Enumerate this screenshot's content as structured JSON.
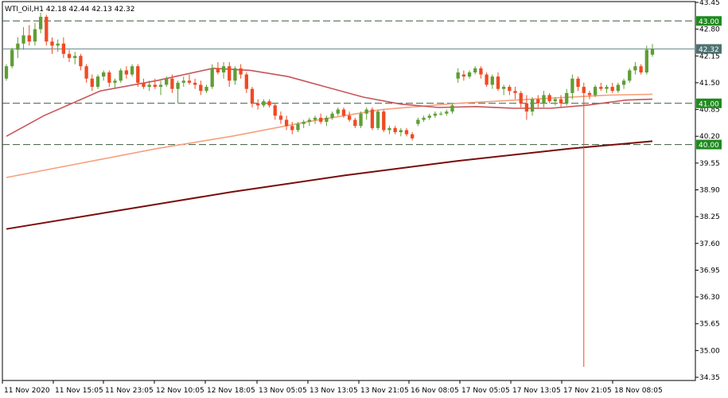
{
  "info_label": "WTI_Oil,H1  42.18 42.44 42.13 42.32",
  "colors": {
    "bull": "#5f9e35",
    "bear": "#f04a23",
    "ma_fast": "#c8555a",
    "ma_mid": "#f6a07c",
    "ma_slow": "#7a0c0c",
    "level_line": "#3c5a3c",
    "price_line": "#6e8c8c",
    "level_badge": "#1f8a1f",
    "price_badge": "#4e7070",
    "grid": "#000000"
  },
  "chart_data": {
    "type": "candlestick",
    "symbol": "WTI_Oil",
    "timeframe": "H1",
    "ohlc_last": {
      "open": 42.18,
      "high": 42.44,
      "low": 42.13,
      "close": 42.32
    },
    "ylim": [
      34.35,
      43.45
    ],
    "y_ticks": [
      "43.45",
      "42.80",
      "42.15",
      "41.50",
      "40.85",
      "40.20",
      "39.55",
      "38.90",
      "38.25",
      "37.60",
      "36.95",
      "36.30",
      "35.65",
      "35.00",
      "34.35"
    ],
    "x_ticks": [
      "11 Nov 2020",
      "11 Nov 15:05",
      "11 Nov 23:05",
      "12 Nov 10:05",
      "12 Nov 18:05",
      "13 Nov 05:05",
      "13 Nov 13:05",
      "13 Nov 21:05",
      "16 Nov 08:05",
      "17 Nov 05:05",
      "17 Nov 13:05",
      "17 Nov 21:05",
      "18 Nov 08:05"
    ],
    "horizontal_levels": [
      {
        "value": 43.0,
        "label": "43.00"
      },
      {
        "value": 41.0,
        "label": "41.00"
      },
      {
        "value": 40.0,
        "label": "40.00"
      }
    ],
    "current_price": {
      "value": 42.32,
      "label": "42.32"
    },
    "candles": [
      [
        41.6,
        41.95,
        41.55,
        41.9
      ],
      [
        41.9,
        42.35,
        41.85,
        42.3
      ],
      [
        42.3,
        42.6,
        42.1,
        42.45
      ],
      [
        42.45,
        42.85,
        42.3,
        42.65
      ],
      [
        42.65,
        42.9,
        42.4,
        42.5
      ],
      [
        42.5,
        42.95,
        42.4,
        42.8
      ],
      [
        42.8,
        43.2,
        42.7,
        43.1
      ],
      [
        43.1,
        43.15,
        42.4,
        42.5
      ],
      [
        42.5,
        42.6,
        42.2,
        42.4
      ],
      [
        42.4,
        42.55,
        42.25,
        42.45
      ],
      [
        42.45,
        42.6,
        42.1,
        42.2
      ],
      [
        42.2,
        42.3,
        42.0,
        42.1
      ],
      [
        42.1,
        42.25,
        41.95,
        42.15
      ],
      [
        42.15,
        42.2,
        41.8,
        41.9
      ],
      [
        41.9,
        41.95,
        41.5,
        41.6
      ],
      [
        41.6,
        41.7,
        41.3,
        41.4
      ],
      [
        41.4,
        41.7,
        41.35,
        41.65
      ],
      [
        41.65,
        41.8,
        41.55,
        41.75
      ],
      [
        41.75,
        41.8,
        41.4,
        41.5
      ],
      [
        41.5,
        41.6,
        41.35,
        41.55
      ],
      [
        41.55,
        41.85,
        41.5,
        41.8
      ],
      [
        41.8,
        41.9,
        41.6,
        41.7
      ],
      [
        41.7,
        41.95,
        41.65,
        41.9
      ],
      [
        41.9,
        41.95,
        41.4,
        41.5
      ],
      [
        41.5,
        41.6,
        41.35,
        41.4
      ],
      [
        41.4,
        41.55,
        41.3,
        41.45
      ],
      [
        41.45,
        41.6,
        41.35,
        41.4
      ],
      [
        41.4,
        41.55,
        41.2,
        41.45
      ],
      [
        41.45,
        41.65,
        41.4,
        41.6
      ],
      [
        41.6,
        41.7,
        41.25,
        41.35
      ],
      [
        41.35,
        41.55,
        41.0,
        41.5
      ],
      [
        41.5,
        41.65,
        41.4,
        41.55
      ],
      [
        41.55,
        41.7,
        41.45,
        41.5
      ],
      [
        41.5,
        41.6,
        41.35,
        41.45
      ],
      [
        41.45,
        41.55,
        41.2,
        41.3
      ],
      [
        41.3,
        41.45,
        41.25,
        41.4
      ],
      [
        41.4,
        41.95,
        41.35,
        41.85
      ],
      [
        41.85,
        42.0,
        41.7,
        41.75
      ],
      [
        41.75,
        42.0,
        41.6,
        41.9
      ],
      [
        41.9,
        42.0,
        41.4,
        41.55
      ],
      [
        41.55,
        41.9,
        41.45,
        41.85
      ],
      [
        41.85,
        41.95,
        41.6,
        41.7
      ],
      [
        41.7,
        41.75,
        41.25,
        41.35
      ],
      [
        41.35,
        41.4,
        40.9,
        41.0
      ],
      [
        41.0,
        41.1,
        40.85,
        40.95
      ],
      [
        40.95,
        41.1,
        40.9,
        41.05
      ],
      [
        41.05,
        41.1,
        40.9,
        40.95
      ],
      [
        40.95,
        41.0,
        40.6,
        40.7
      ],
      [
        40.7,
        40.8,
        40.5,
        40.6
      ],
      [
        40.6,
        40.7,
        40.35,
        40.45
      ],
      [
        40.45,
        40.55,
        40.25,
        40.35
      ],
      [
        40.35,
        40.55,
        40.3,
        40.5
      ],
      [
        40.5,
        40.6,
        40.4,
        40.55
      ],
      [
        40.55,
        40.65,
        40.45,
        40.6
      ],
      [
        40.6,
        40.7,
        40.5,
        40.65
      ],
      [
        40.65,
        40.75,
        40.5,
        40.55
      ],
      [
        40.55,
        40.7,
        40.45,
        40.65
      ],
      [
        40.65,
        40.8,
        40.6,
        40.75
      ],
      [
        40.75,
        40.9,
        40.7,
        40.85
      ],
      [
        40.85,
        40.9,
        40.65,
        40.7
      ],
      [
        40.7,
        40.8,
        40.55,
        40.6
      ],
      [
        40.6,
        40.65,
        40.4,
        40.45
      ],
      [
        40.45,
        40.8,
        40.4,
        40.75
      ],
      [
        40.75,
        40.9,
        40.6,
        40.85
      ],
      [
        40.85,
        40.9,
        40.35,
        40.4
      ],
      [
        40.4,
        40.85,
        40.35,
        40.8
      ],
      [
        40.8,
        40.85,
        40.3,
        40.35
      ],
      [
        40.35,
        40.45,
        40.25,
        40.4
      ],
      [
        40.4,
        40.45,
        40.25,
        40.3
      ],
      [
        40.3,
        40.4,
        40.2,
        40.35
      ],
      [
        40.35,
        40.4,
        40.2,
        40.25
      ],
      [
        40.25,
        40.3,
        40.1,
        40.15
      ],
      [
        40.5,
        40.65,
        40.45,
        40.6
      ],
      [
        40.6,
        40.7,
        40.55,
        40.65
      ],
      [
        40.65,
        40.75,
        40.6,
        40.7
      ],
      [
        40.7,
        40.8,
        40.65,
        40.75
      ],
      [
        40.75,
        40.8,
        40.7,
        40.75
      ],
      [
        40.75,
        40.85,
        40.7,
        40.8
      ],
      [
        40.8,
        41.0,
        40.75,
        40.95
      ],
      [
        41.6,
        41.85,
        41.5,
        41.75
      ],
      [
        41.7,
        41.8,
        41.55,
        41.65
      ],
      [
        41.65,
        41.8,
        41.6,
        41.75
      ],
      [
        41.75,
        41.9,
        41.7,
        41.85
      ],
      [
        41.85,
        41.9,
        41.6,
        41.7
      ],
      [
        41.7,
        41.75,
        41.4,
        41.45
      ],
      [
        41.45,
        41.7,
        41.35,
        41.65
      ],
      [
        41.65,
        41.75,
        41.3,
        41.35
      ],
      [
        41.35,
        41.45,
        41.2,
        41.4
      ],
      [
        41.4,
        41.45,
        41.2,
        41.3
      ],
      [
        41.3,
        41.4,
        41.1,
        41.25
      ],
      [
        41.25,
        41.3,
        40.9,
        41.0
      ],
      [
        41.0,
        41.2,
        40.6,
        40.8
      ],
      [
        40.8,
        41.15,
        40.7,
        41.1
      ],
      [
        41.1,
        41.2,
        40.9,
        41.0
      ],
      [
        41.0,
        41.3,
        40.9,
        41.2
      ],
      [
        41.2,
        41.25,
        41.0,
        41.05
      ],
      [
        41.05,
        41.15,
        40.95,
        41.1
      ],
      [
        41.1,
        41.2,
        40.9,
        41.0
      ],
      [
        41.0,
        41.35,
        40.95,
        41.25
      ],
      [
        41.25,
        41.7,
        41.1,
        41.6
      ],
      [
        41.6,
        41.65,
        41.3,
        41.4
      ],
      [
        41.4,
        41.5,
        34.6,
        41.25
      ],
      [
        41.25,
        41.3,
        41.1,
        41.2
      ],
      [
        41.2,
        41.45,
        41.15,
        41.4
      ],
      [
        41.4,
        41.5,
        41.3,
        41.35
      ],
      [
        41.35,
        41.45,
        41.25,
        41.4
      ],
      [
        41.4,
        41.5,
        41.25,
        41.3
      ],
      [
        41.3,
        41.5,
        41.25,
        41.45
      ],
      [
        41.45,
        41.6,
        41.35,
        41.55
      ],
      [
        41.55,
        41.85,
        41.5,
        41.8
      ],
      [
        41.8,
        42.0,
        41.7,
        41.9
      ],
      [
        41.9,
        41.95,
        41.7,
        41.75
      ],
      [
        41.75,
        42.4,
        41.7,
        42.3
      ],
      [
        42.18,
        42.44,
        42.13,
        42.32
      ]
    ],
    "ma_fast": [
      [
        0,
        40.2
      ],
      [
        10,
        40.7
      ],
      [
        25,
        41.3
      ],
      [
        40,
        41.55
      ],
      [
        55,
        41.85
      ],
      [
        65,
        41.8
      ],
      [
        75,
        41.65
      ],
      [
        85,
        41.4
      ],
      [
        95,
        41.15
      ],
      [
        105,
        40.98
      ],
      [
        115,
        40.9
      ],
      [
        125,
        40.92
      ],
      [
        135,
        40.88
      ],
      [
        145,
        40.88
      ],
      [
        155,
        40.96
      ],
      [
        165,
        41.08
      ],
      [
        172,
        41.1
      ]
    ],
    "ma_mid": [
      [
        0,
        39.2
      ],
      [
        20,
        39.55
      ],
      [
        40,
        39.9
      ],
      [
        60,
        40.2
      ],
      [
        80,
        40.55
      ],
      [
        100,
        40.85
      ],
      [
        120,
        41.0
      ],
      [
        140,
        41.1
      ],
      [
        160,
        41.2
      ],
      [
        172,
        41.22
      ]
    ],
    "ma_slow": [
      [
        0,
        37.95
      ],
      [
        30,
        38.4
      ],
      [
        60,
        38.85
      ],
      [
        90,
        39.25
      ],
      [
        120,
        39.6
      ],
      [
        150,
        39.9
      ],
      [
        172,
        40.08
      ]
    ]
  }
}
